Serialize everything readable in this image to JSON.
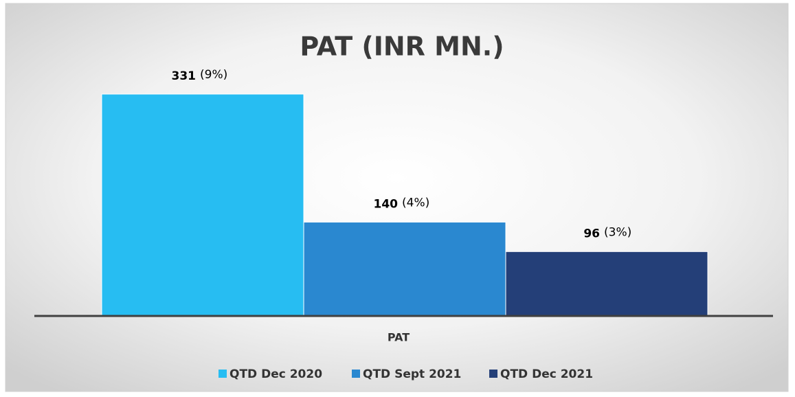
{
  "chart_data": {
    "type": "bar",
    "title": "PAT (INR MN.)",
    "categories": [
      "PAT"
    ],
    "series": [
      {
        "name": "QTD Dec 2020",
        "color": "#27bdf2",
        "values": [
          331
        ],
        "annotations": [
          "(9%)"
        ]
      },
      {
        "name": "QTD Sept 2021",
        "color": "#2a88d0",
        "values": [
          140
        ],
        "annotations": [
          "(4%)"
        ]
      },
      {
        "name": "QTD Dec 2021",
        "color": "#243f78",
        "values": [
          96
        ],
        "annotations": [
          "(3%)"
        ]
      }
    ],
    "legend": "bottom"
  }
}
